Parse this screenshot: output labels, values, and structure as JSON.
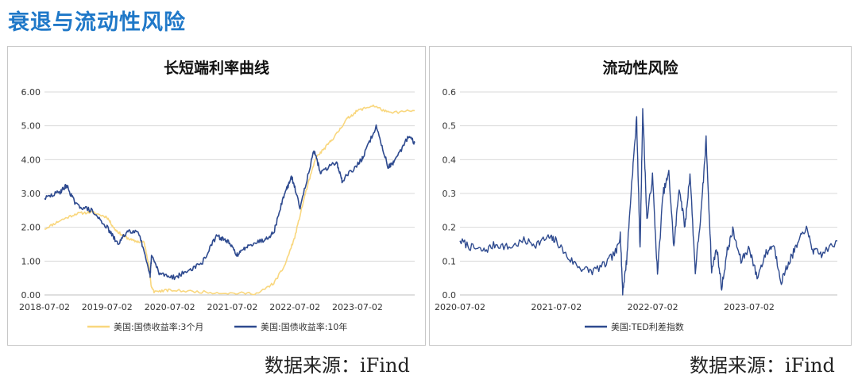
{
  "page_title": "衰退与流动性风险",
  "source_left": "数据来源：iFind",
  "source_right": "数据来源：iFind",
  "colors": {
    "title": "#1f78c8",
    "series_3m": "#f9d77e",
    "series_10y": "#2e4a8f",
    "ted": "#2e4a8f"
  },
  "chart_data": [
    {
      "type": "line",
      "title": "长短端利率曲线",
      "xlabel": "",
      "ylabel": "",
      "x_ticks": [
        "2018-07-02",
        "2019-07-02",
        "2020-07-02",
        "2021-07-02",
        "2022-07-02",
        "2023-07-02"
      ],
      "y_ticks": [
        "0.00",
        "1.00",
        "2.00",
        "3.00",
        "4.00",
        "5.00",
        "6.00"
      ],
      "ylim": [
        0,
        6
      ],
      "xlim": [
        "2018-07-02",
        "2024-05-31"
      ],
      "grid": true,
      "legend_position": "bottom",
      "series": [
        {
          "name": "美国:国债收益率:3个月",
          "color": "#f9d77e",
          "x": [
            "2018-07-02",
            "2018-10-01",
            "2019-01-02",
            "2019-04-01",
            "2019-07-02",
            "2019-08-15",
            "2019-10-01",
            "2019-12-02",
            "2020-02-03",
            "2020-03-02",
            "2020-03-16",
            "2020-04-01",
            "2020-07-02",
            "2021-01-04",
            "2021-07-02",
            "2021-12-01",
            "2022-03-01",
            "2022-05-02",
            "2022-07-01",
            "2022-09-01",
            "2022-11-01",
            "2023-01-03",
            "2023-03-01",
            "2023-05-01",
            "2023-07-03",
            "2023-10-02",
            "2024-01-02",
            "2024-05-31"
          ],
          "values": [
            1.95,
            2.2,
            2.4,
            2.45,
            2.3,
            1.95,
            1.75,
            1.6,
            1.55,
            0.9,
            0.25,
            0.1,
            0.14,
            0.09,
            0.05,
            0.05,
            0.35,
            0.85,
            1.7,
            3.0,
            4.05,
            4.4,
            4.75,
            5.2,
            5.45,
            5.6,
            5.38,
            5.45
          ]
        },
        {
          "name": "美国:国债收益率:10年",
          "color": "#2e4a8f",
          "x": [
            "2018-07-02",
            "2018-10-01",
            "2018-11-08",
            "2019-01-02",
            "2019-04-01",
            "2019-07-02",
            "2019-09-03",
            "2019-11-01",
            "2020-01-02",
            "2020-03-09",
            "2020-03-18",
            "2020-05-01",
            "2020-08-04",
            "2020-10-01",
            "2021-01-04",
            "2021-03-31",
            "2021-06-01",
            "2021-08-03",
            "2021-10-01",
            "2022-01-03",
            "2022-03-01",
            "2022-05-02",
            "2022-06-14",
            "2022-08-01",
            "2022-10-21",
            "2022-12-01",
            "2023-03-01",
            "2023-04-03",
            "2023-07-03",
            "2023-08-01",
            "2023-10-19",
            "2023-12-27",
            "2024-02-01",
            "2024-04-25",
            "2024-05-31"
          ],
          "values": [
            2.85,
            3.05,
            3.24,
            2.66,
            2.5,
            2.0,
            1.5,
            1.9,
            1.88,
            0.54,
            1.18,
            0.64,
            0.52,
            0.68,
            0.92,
            1.74,
            1.6,
            1.17,
            1.48,
            1.63,
            1.85,
            3.0,
            3.48,
            2.6,
            4.25,
            3.6,
            3.95,
            3.38,
            3.85,
            4.05,
            4.98,
            3.8,
            3.9,
            4.7,
            4.5
          ]
        }
      ]
    },
    {
      "type": "line",
      "title": "流动性风险",
      "xlabel": "",
      "ylabel": "",
      "x_ticks": [
        "2020-07-02",
        "2021-07-02",
        "2022-07-02",
        "2023-07-02"
      ],
      "y_ticks": [
        "0.0",
        "0.1",
        "0.2",
        "0.3",
        "0.4",
        "0.5",
        "0.6"
      ],
      "ylim": [
        0,
        0.6
      ],
      "xlim": [
        "2020-07-02",
        "2024-05-31"
      ],
      "grid": true,
      "legend_position": "bottom",
      "series": [
        {
          "name": "美国:TED利差指数",
          "color": "#2e4a8f",
          "x": [
            "2020-07-02",
            "2020-08-15",
            "2020-10-01",
            "2020-11-15",
            "2021-01-04",
            "2021-03-01",
            "2021-04-15",
            "2021-06-01",
            "2021-07-02",
            "2021-08-15",
            "2021-10-01",
            "2021-11-15",
            "2022-01-03",
            "2022-02-15",
            "2022-03-01",
            "2022-03-10",
            "2022-03-25",
            "2022-04-15",
            "2022-05-02",
            "2022-05-15",
            "2022-05-25",
            "2022-06-10",
            "2022-07-01",
            "2022-07-20",
            "2022-08-10",
            "2022-09-01",
            "2022-09-20",
            "2022-10-10",
            "2022-11-01",
            "2022-11-20",
            "2022-12-10",
            "2023-01-03",
            "2023-01-20",
            "2023-02-10",
            "2023-03-01",
            "2023-03-20",
            "2023-04-10",
            "2023-05-01",
            "2023-06-01",
            "2023-07-03",
            "2023-08-01",
            "2023-09-01",
            "2023-10-02",
            "2023-11-01",
            "2023-12-01",
            "2024-01-02",
            "2024-02-01",
            "2024-03-01",
            "2024-04-01",
            "2024-05-31"
          ],
          "values": [
            0.16,
            0.14,
            0.13,
            0.15,
            0.14,
            0.16,
            0.15,
            0.17,
            0.16,
            0.11,
            0.08,
            0.07,
            0.09,
            0.13,
            0.18,
            0.01,
            0.1,
            0.35,
            0.52,
            0.13,
            0.55,
            0.22,
            0.35,
            0.06,
            0.3,
            0.36,
            0.14,
            0.32,
            0.2,
            0.36,
            0.07,
            0.26,
            0.46,
            0.07,
            0.14,
            0.02,
            0.13,
            0.19,
            0.1,
            0.14,
            0.05,
            0.12,
            0.15,
            0.04,
            0.1,
            0.15,
            0.2,
            0.13,
            0.12,
            0.16
          ]
        }
      ]
    }
  ]
}
